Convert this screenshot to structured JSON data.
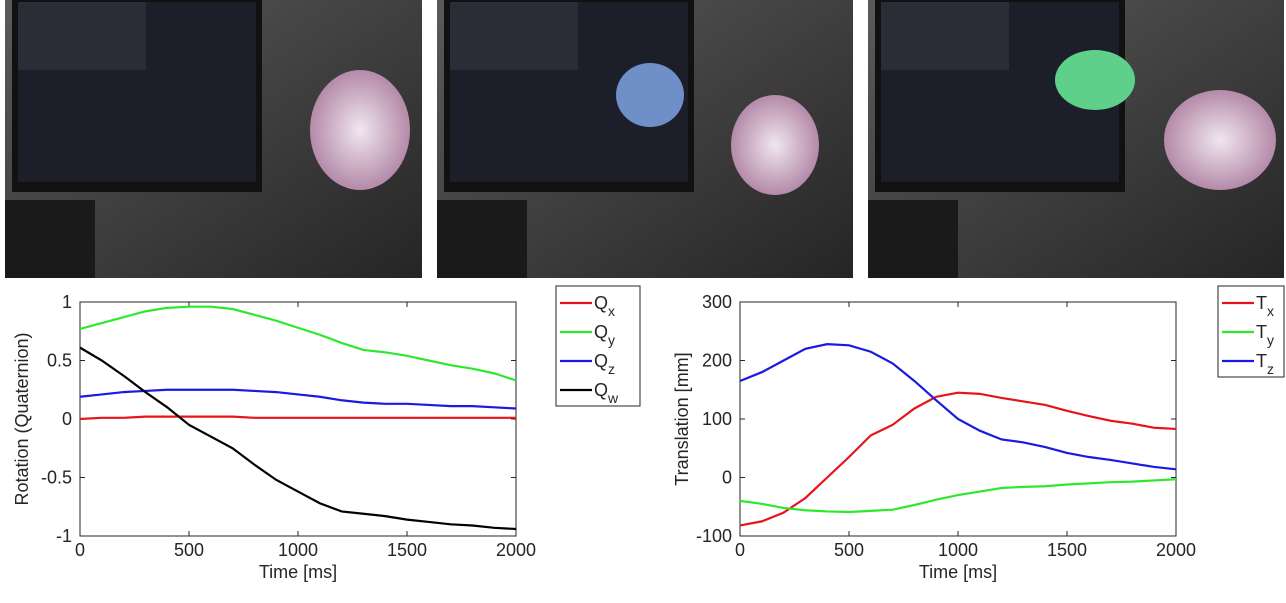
{
  "chart_data": [
    {
      "type": "line",
      "ylabel": "Rotation (Quaternion)",
      "xlabel": "Time [ms]",
      "x": [
        0,
        100,
        200,
        300,
        400,
        500,
        600,
        700,
        800,
        900,
        1000,
        1100,
        1200,
        1300,
        1400,
        1500,
        1600,
        1700,
        1800,
        1900,
        2000
      ],
      "xlim": [
        0,
        2000
      ],
      "xticks": [
        0,
        500,
        1000,
        1500,
        2000
      ],
      "ylim": [
        -1,
        1
      ],
      "yticks": [
        -1,
        -0.5,
        0,
        0.5,
        1
      ],
      "grid": false,
      "legend": "outside-right",
      "series": [
        {
          "name": "Qx",
          "color": "#e8141b",
          "values": [
            0,
            0.01,
            0.01,
            0.02,
            0.02,
            0.02,
            0.02,
            0.02,
            0.01,
            0.01,
            0.01,
            0.01,
            0.01,
            0.01,
            0.01,
            0.01,
            0.01,
            0.01,
            0.01,
            0.01,
            0.01
          ]
        },
        {
          "name": "Qy",
          "color": "#2ee82e",
          "values": [
            0.77,
            0.82,
            0.87,
            0.92,
            0.95,
            0.96,
            0.96,
            0.94,
            0.89,
            0.84,
            0.78,
            0.72,
            0.65,
            0.59,
            0.57,
            0.54,
            0.5,
            0.46,
            0.43,
            0.39,
            0.33
          ]
        },
        {
          "name": "Qz",
          "color": "#1a1ae0",
          "values": [
            0.19,
            0.21,
            0.23,
            0.24,
            0.25,
            0.25,
            0.25,
            0.25,
            0.24,
            0.23,
            0.21,
            0.19,
            0.16,
            0.14,
            0.13,
            0.13,
            0.12,
            0.11,
            0.11,
            0.1,
            0.09
          ]
        },
        {
          "name": "Qw",
          "color": "#000000",
          "values": [
            0.61,
            0.5,
            0.37,
            0.23,
            0.1,
            -0.05,
            -0.15,
            -0.25,
            -0.39,
            -0.52,
            -0.62,
            -0.72,
            -0.79,
            -0.81,
            -0.83,
            -0.86,
            -0.88,
            -0.9,
            -0.91,
            -0.93,
            -0.94
          ]
        }
      ]
    },
    {
      "type": "line",
      "ylabel": "Translation [mm]",
      "xlabel": "Time [ms]",
      "x": [
        0,
        100,
        200,
        300,
        400,
        500,
        600,
        700,
        800,
        900,
        1000,
        1100,
        1200,
        1300,
        1400,
        1500,
        1600,
        1700,
        1800,
        1900,
        2000
      ],
      "xlim": [
        0,
        2000
      ],
      "xticks": [
        0,
        500,
        1000,
        1500,
        2000
      ],
      "ylim": [
        -100,
        300
      ],
      "yticks": [
        -100,
        0,
        100,
        200,
        300
      ],
      "grid": false,
      "legend": "outside-right",
      "series": [
        {
          "name": "Tx",
          "color": "#e8141b",
          "values": [
            -82,
            -75,
            -60,
            -35,
            0,
            35,
            72,
            90,
            118,
            138,
            145,
            143,
            136,
            130,
            124,
            114,
            105,
            97,
            92,
            85,
            83
          ]
        },
        {
          "name": "Ty",
          "color": "#2ee82e",
          "values": [
            -40,
            -45,
            -52,
            -56,
            -58,
            -59,
            -57,
            -55,
            -47,
            -38,
            -30,
            -24,
            -18,
            -16,
            -15,
            -12,
            -10,
            -8,
            -7,
            -5,
            -3
          ]
        },
        {
          "name": "Tz",
          "color": "#1a1ae0",
          "values": [
            165,
            180,
            200,
            220,
            228,
            226,
            215,
            195,
            165,
            132,
            100,
            80,
            65,
            60,
            52,
            42,
            35,
            30,
            24,
            18,
            14
          ]
        }
      ]
    }
  ]
}
